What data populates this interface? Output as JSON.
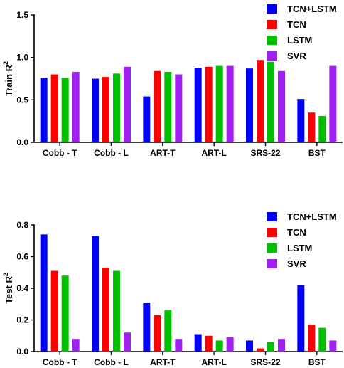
{
  "chart_data": [
    {
      "type": "bar",
      "categories": [
        "Cobb - T",
        "Cobb - L",
        "ART-T",
        "ART-L",
        "SRS-22",
        "BST"
      ],
      "series": [
        {
          "name": "TCN+LSTM",
          "color": "#0000ff",
          "values": [
            0.76,
            0.75,
            0.54,
            0.88,
            0.87,
            0.51
          ]
        },
        {
          "name": "TCN",
          "color": "#ff0000",
          "values": [
            0.8,
            0.77,
            0.84,
            0.89,
            0.97,
            0.35
          ]
        },
        {
          "name": "LSTM",
          "color": "#00c000",
          "values": [
            0.76,
            0.81,
            0.83,
            0.9,
            0.95,
            0.31
          ]
        },
        {
          "name": "SVR",
          "color": "#a020f0",
          "values": [
            0.83,
            0.89,
            0.8,
            0.9,
            0.84,
            0.9
          ]
        }
      ],
      "ylabel": "Train R",
      "ylabel_sup": "2",
      "ylim": [
        0,
        1.5
      ],
      "yticks": [
        "0.0",
        "0.5",
        "1.0",
        "1.5"
      ],
      "legend": "top-right"
    },
    {
      "type": "bar",
      "categories": [
        "Cobb - T",
        "Cobb - L",
        "ART-T",
        "ART-L",
        "SRS-22",
        "BST"
      ],
      "series": [
        {
          "name": "TCN+LSTM",
          "color": "#0000ff",
          "values": [
            0.74,
            0.73,
            0.31,
            0.11,
            0.07,
            0.42
          ]
        },
        {
          "name": "TCN",
          "color": "#ff0000",
          "values": [
            0.51,
            0.53,
            0.23,
            0.1,
            0.02,
            0.17
          ]
        },
        {
          "name": "LSTM",
          "color": "#00c000",
          "values": [
            0.48,
            0.51,
            0.26,
            0.07,
            0.06,
            0.15
          ]
        },
        {
          "name": "SVR",
          "color": "#a020f0",
          "values": [
            0.08,
            0.12,
            0.08,
            0.09,
            0.08,
            0.07
          ]
        }
      ],
      "ylabel": "Test R",
      "ylabel_sup": "2",
      "ylim": [
        0,
        0.8
      ],
      "yticks": [
        "0.0",
        "0.2",
        "0.4",
        "0.6",
        "0.8"
      ],
      "legend": "top-right"
    }
  ]
}
